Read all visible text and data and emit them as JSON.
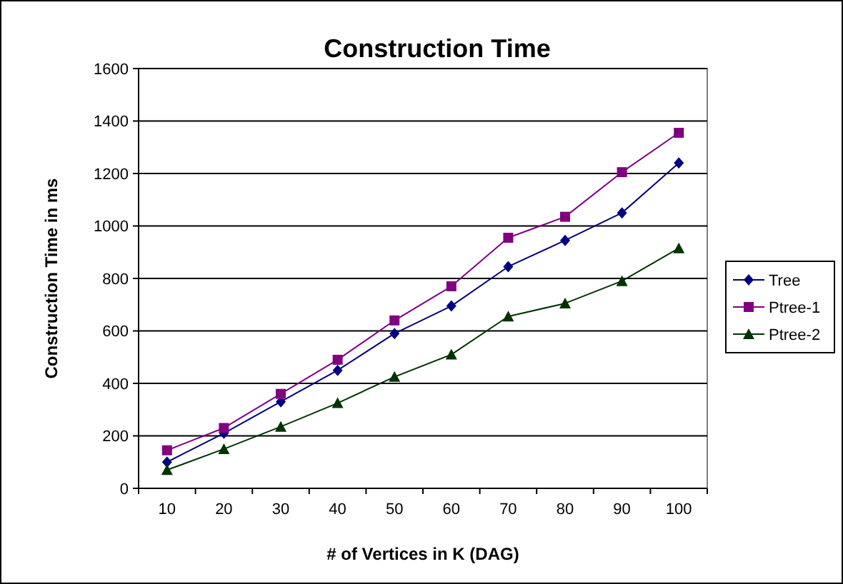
{
  "chart_data": {
    "type": "line",
    "title": "Construction Time",
    "xlabel": "# of Vertices in K (DAG)",
    "ylabel": "Construction Time in ms",
    "categories": [
      "10",
      "20",
      "30",
      "40",
      "50",
      "60",
      "70",
      "80",
      "90",
      "100"
    ],
    "series": [
      {
        "name": "Tree",
        "color": "#000080",
        "marker": "diamond",
        "values": [
          100,
          210,
          330,
          450,
          590,
          695,
          845,
          945,
          1050,
          1240
        ]
      },
      {
        "name": "Ptree-1",
        "color": "#800080",
        "marker": "square",
        "values": [
          145,
          230,
          360,
          490,
          640,
          770,
          955,
          1035,
          1205,
          1355
        ]
      },
      {
        "name": "Ptree-2",
        "color": "#003300",
        "marker": "triangle",
        "values": [
          70,
          150,
          235,
          325,
          425,
          510,
          655,
          705,
          790,
          915
        ]
      }
    ],
    "ylim": [
      0,
      1600
    ],
    "yticks": [
      0,
      200,
      400,
      600,
      800,
      1000,
      1200,
      1400,
      1600
    ],
    "grid": "y",
    "legend": "right"
  }
}
